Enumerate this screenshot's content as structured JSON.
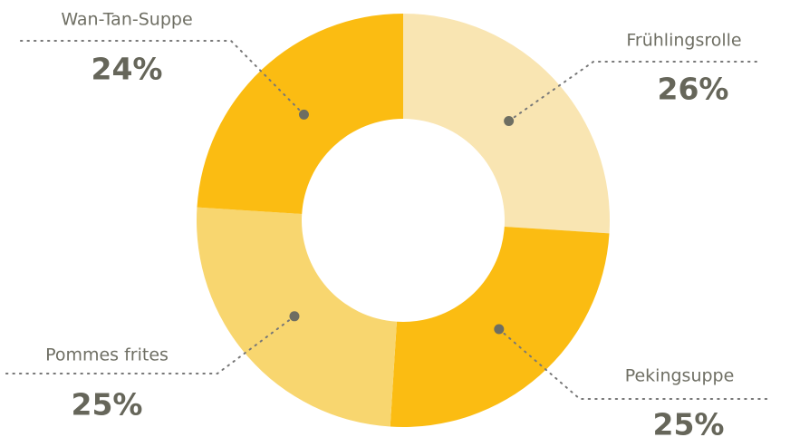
{
  "chart_data": {
    "type": "donut",
    "categories": [
      "Frühlingsrolle",
      "Pekingsuppe",
      "Pommes frites",
      "Wan-Tan-Suppe"
    ],
    "values": [
      26,
      25,
      25,
      24
    ],
    "value_labels": [
      "26%",
      "25%",
      "25%",
      "24%"
    ],
    "colors": [
      "#f9e5b2",
      "#fbbc12",
      "#f8d66f",
      "#fbbc12"
    ]
  }
}
